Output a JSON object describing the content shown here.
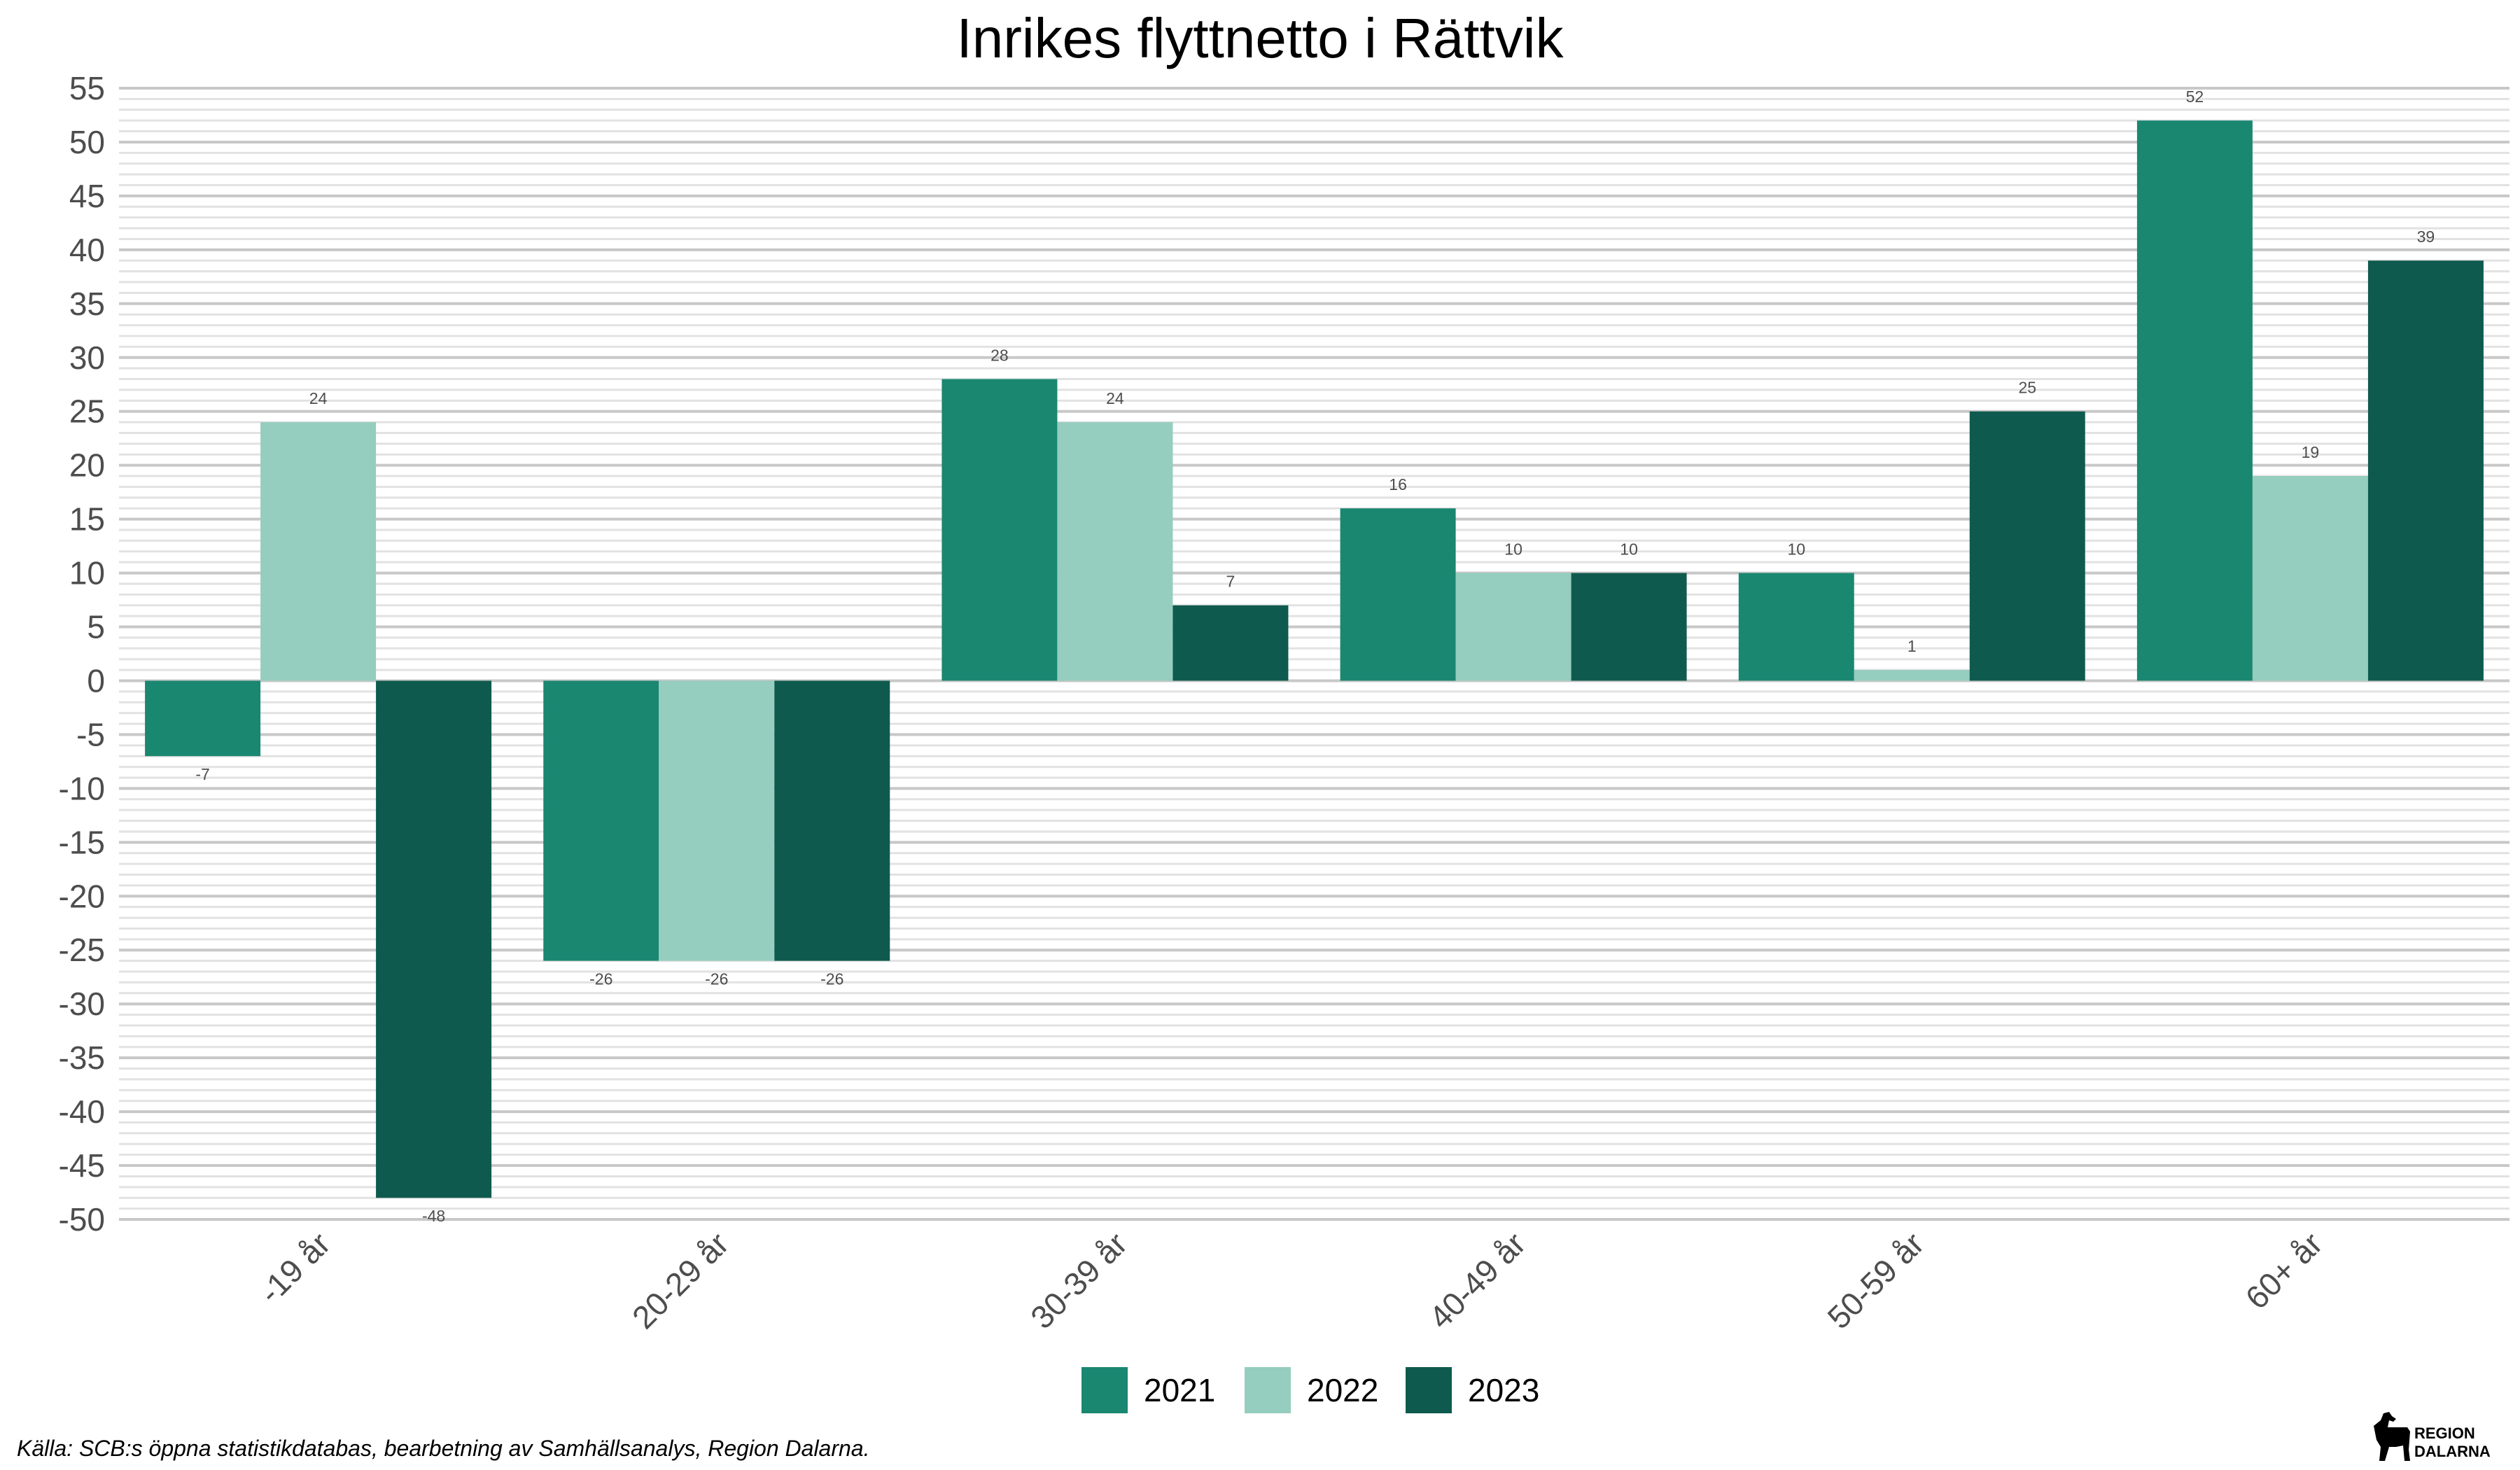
{
  "chart_data": {
    "type": "bar",
    "title": "Inrikes flyttnetto i Rättvik",
    "xlabel": "",
    "ylabel": "",
    "categories": [
      "-19 år",
      "20-29 år",
      "30-39 år",
      "40-49 år",
      "50-59 år",
      "60+ år"
    ],
    "series": [
      {
        "name": "2021",
        "color": "#1a8771",
        "values": [
          -7,
          -26,
          28,
          16,
          10,
          52
        ]
      },
      {
        "name": "2022",
        "color": "#95cdbe",
        "values": [
          24,
          -26,
          24,
          10,
          1,
          19
        ]
      },
      {
        "name": "2023",
        "color": "#0f5a4e",
        "values": [
          -48,
          -26,
          7,
          10,
          25,
          39
        ]
      }
    ],
    "ylim": [
      -50,
      55
    ],
    "yticks": [
      55,
      50,
      45,
      40,
      35,
      30,
      25,
      20,
      15,
      10,
      5,
      0,
      -5,
      -10,
      -15,
      -20,
      -25,
      -30,
      -35,
      -40,
      -45,
      -50
    ],
    "grid": true,
    "legend_position": "bottom"
  },
  "caption": "Källa: SCB:s öppna statistikdatabas, bearbetning av Samhällsanalys, Region Dalarna.",
  "logo": {
    "line1": "REGION",
    "line2": "DALARNA"
  }
}
